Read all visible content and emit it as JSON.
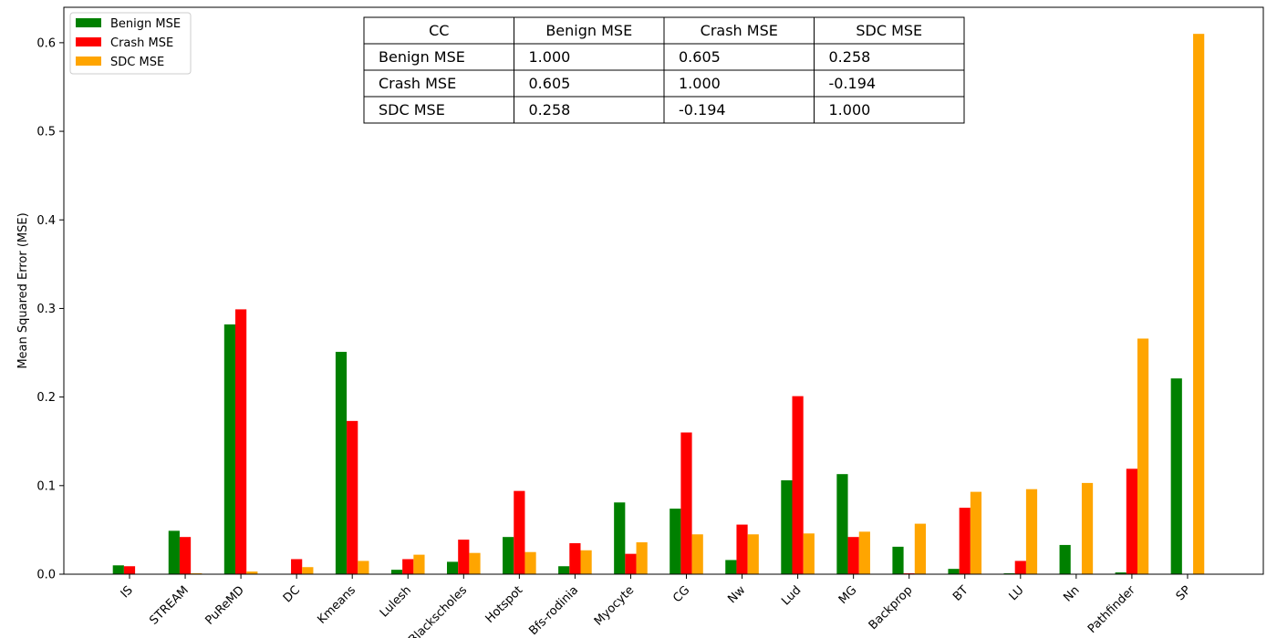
{
  "chart_data": {
    "type": "bar",
    "title": "",
    "xlabel": "",
    "ylabel": "Mean Squared Error (MSE)",
    "ylim": [
      0,
      0.64
    ],
    "yticks": [
      "0.0",
      "0.1",
      "0.2",
      "0.3",
      "0.4",
      "0.5",
      "0.6"
    ],
    "grid": false,
    "legend_position": "top-left",
    "categories": [
      "IS",
      "STREAM",
      "PuReMD",
      "DC",
      "Kmeans",
      "Lulesh",
      "Blackscholes",
      "Hotspot",
      "Bfs-rodinia",
      "Myocyte",
      "CG",
      "Nw",
      "Lud",
      "MG",
      "Backprop",
      "BT",
      "LU",
      "Nn",
      "Pathfinder",
      "SP"
    ],
    "series": [
      {
        "name": "Benign MSE",
        "color": "#008000",
        "values": [
          0.01,
          0.049,
          0.282,
          0.0,
          0.251,
          0.005,
          0.014,
          0.042,
          0.009,
          0.081,
          0.074,
          0.016,
          0.106,
          0.113,
          0.031,
          0.006,
          0.001,
          0.033,
          0.002,
          0.221
        ]
      },
      {
        "name": "Crash MSE",
        "color": "#ff0000",
        "values": [
          0.009,
          0.042,
          0.299,
          0.017,
          0.173,
          0.017,
          0.039,
          0.094,
          0.035,
          0.023,
          0.16,
          0.056,
          0.201,
          0.042,
          0.001,
          0.075,
          0.015,
          0.0,
          0.119,
          0.0
        ]
      },
      {
        "name": "SDC MSE",
        "color": "#ffa500",
        "values": [
          0.0,
          0.001,
          0.003,
          0.008,
          0.015,
          0.022,
          0.024,
          0.025,
          0.027,
          0.036,
          0.045,
          0.045,
          0.046,
          0.048,
          0.057,
          0.093,
          0.096,
          0.103,
          0.266,
          0.61
        ]
      }
    ],
    "table": {
      "header": [
        "CC",
        "Benign MSE",
        "Crash MSE",
        "SDC MSE"
      ],
      "rows": [
        [
          "Benign MSE",
          "1.000",
          "0.605",
          "0.258"
        ],
        [
          "Crash MSE",
          "0.605",
          "1.000",
          "-0.194"
        ],
        [
          "SDC MSE",
          "0.258",
          "-0.194",
          "1.000"
        ]
      ]
    }
  }
}
